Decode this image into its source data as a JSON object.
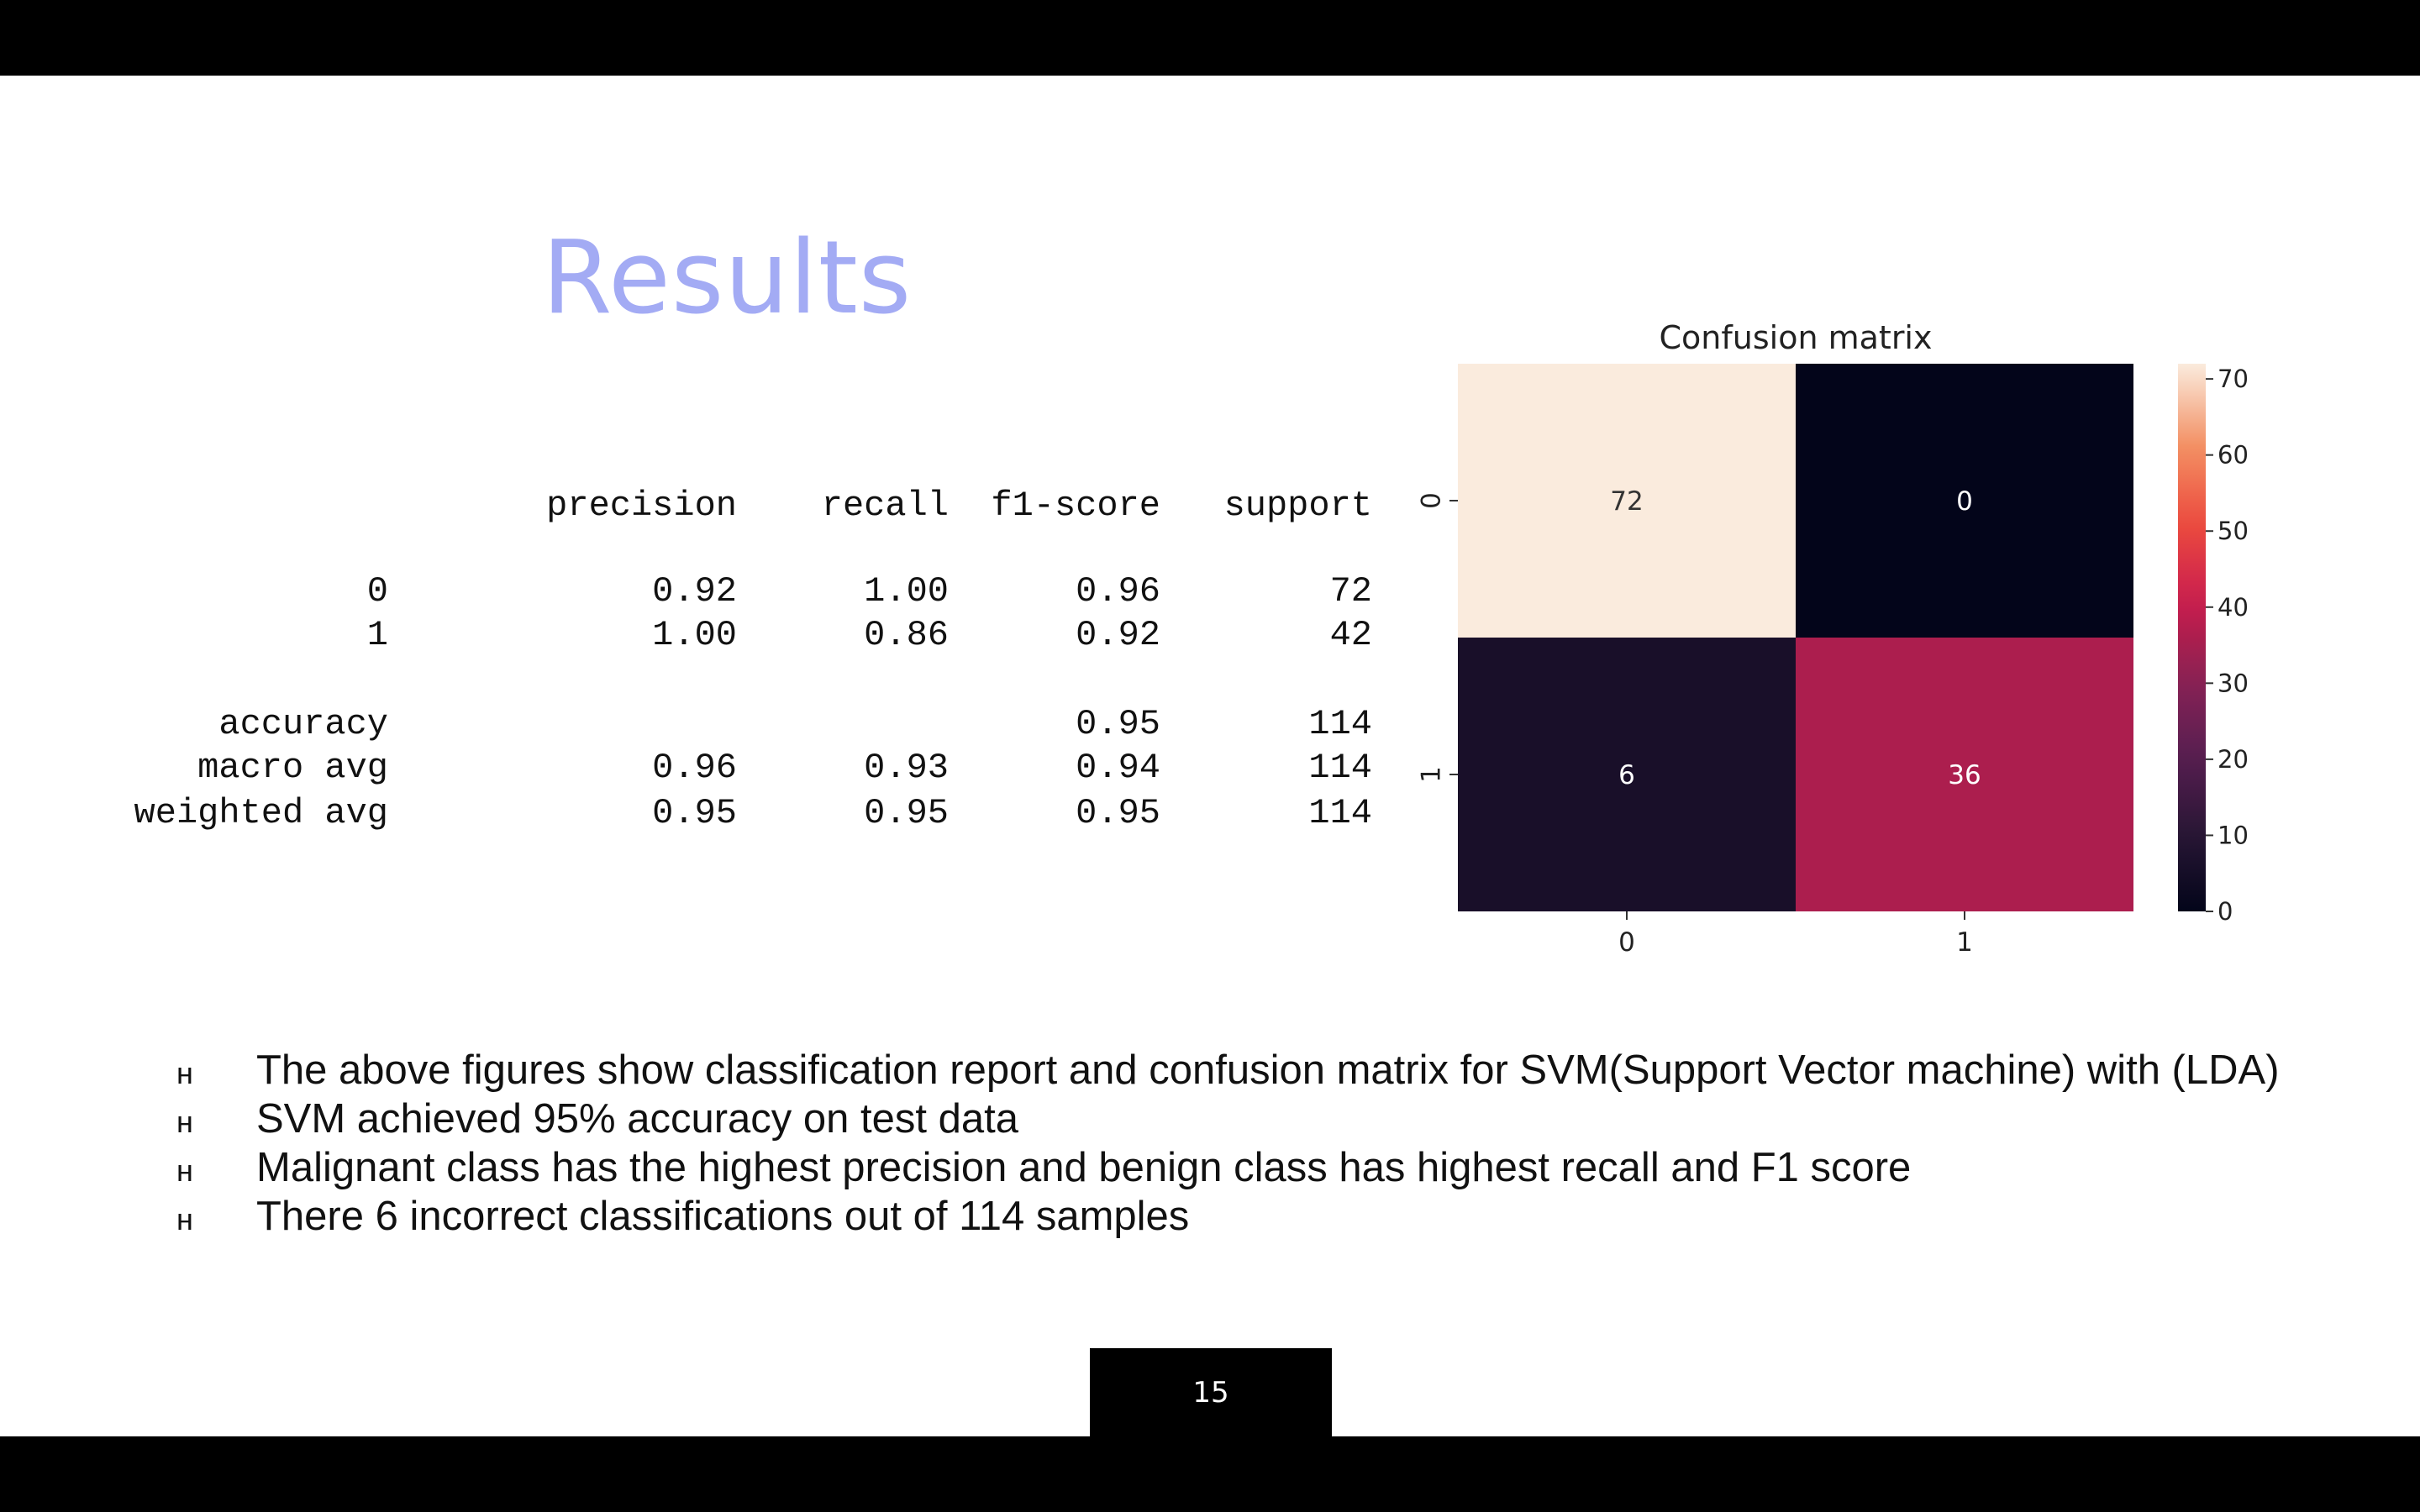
{
  "slide": {
    "title": "Results",
    "page_number": "15"
  },
  "report": {
    "headers": [
      "",
      "precision",
      "recall",
      "f1-score",
      "support"
    ],
    "rows": [
      [
        "0",
        "0.92",
        "1.00",
        "0.96",
        "72"
      ],
      [
        "1",
        "1.00",
        "0.86",
        "0.92",
        "42"
      ],
      [
        "accuracy",
        "",
        "",
        "0.95",
        "114"
      ],
      [
        "macro avg",
        "0.96",
        "0.93",
        "0.94",
        "114"
      ],
      [
        "weighted avg",
        "0.95",
        "0.95",
        "0.95",
        "114"
      ]
    ]
  },
  "bullets": [
    "The above figures show classification report and confusion matrix for SVM(Support Vector machine) with (LDA)",
    "SVM achieved 95% accuracy on test data",
    "Malignant  class has the highest precision and benign class has highest recall and F1 score",
    "There 6  incorrect classifications out of 114 samples"
  ],
  "bullet_marker": "н",
  "chart_data": {
    "type": "heatmap",
    "title": "Confusion matrix",
    "x_categories": [
      "0",
      "1"
    ],
    "y_categories": [
      "0",
      "1"
    ],
    "values": [
      [
        72,
        0
      ],
      [
        6,
        36
      ]
    ],
    "colorbar_ticks": [
      0,
      10,
      20,
      30,
      40,
      50,
      60,
      70
    ],
    "colorbar_range": [
      0,
      72
    ],
    "colormap": "rocket"
  }
}
